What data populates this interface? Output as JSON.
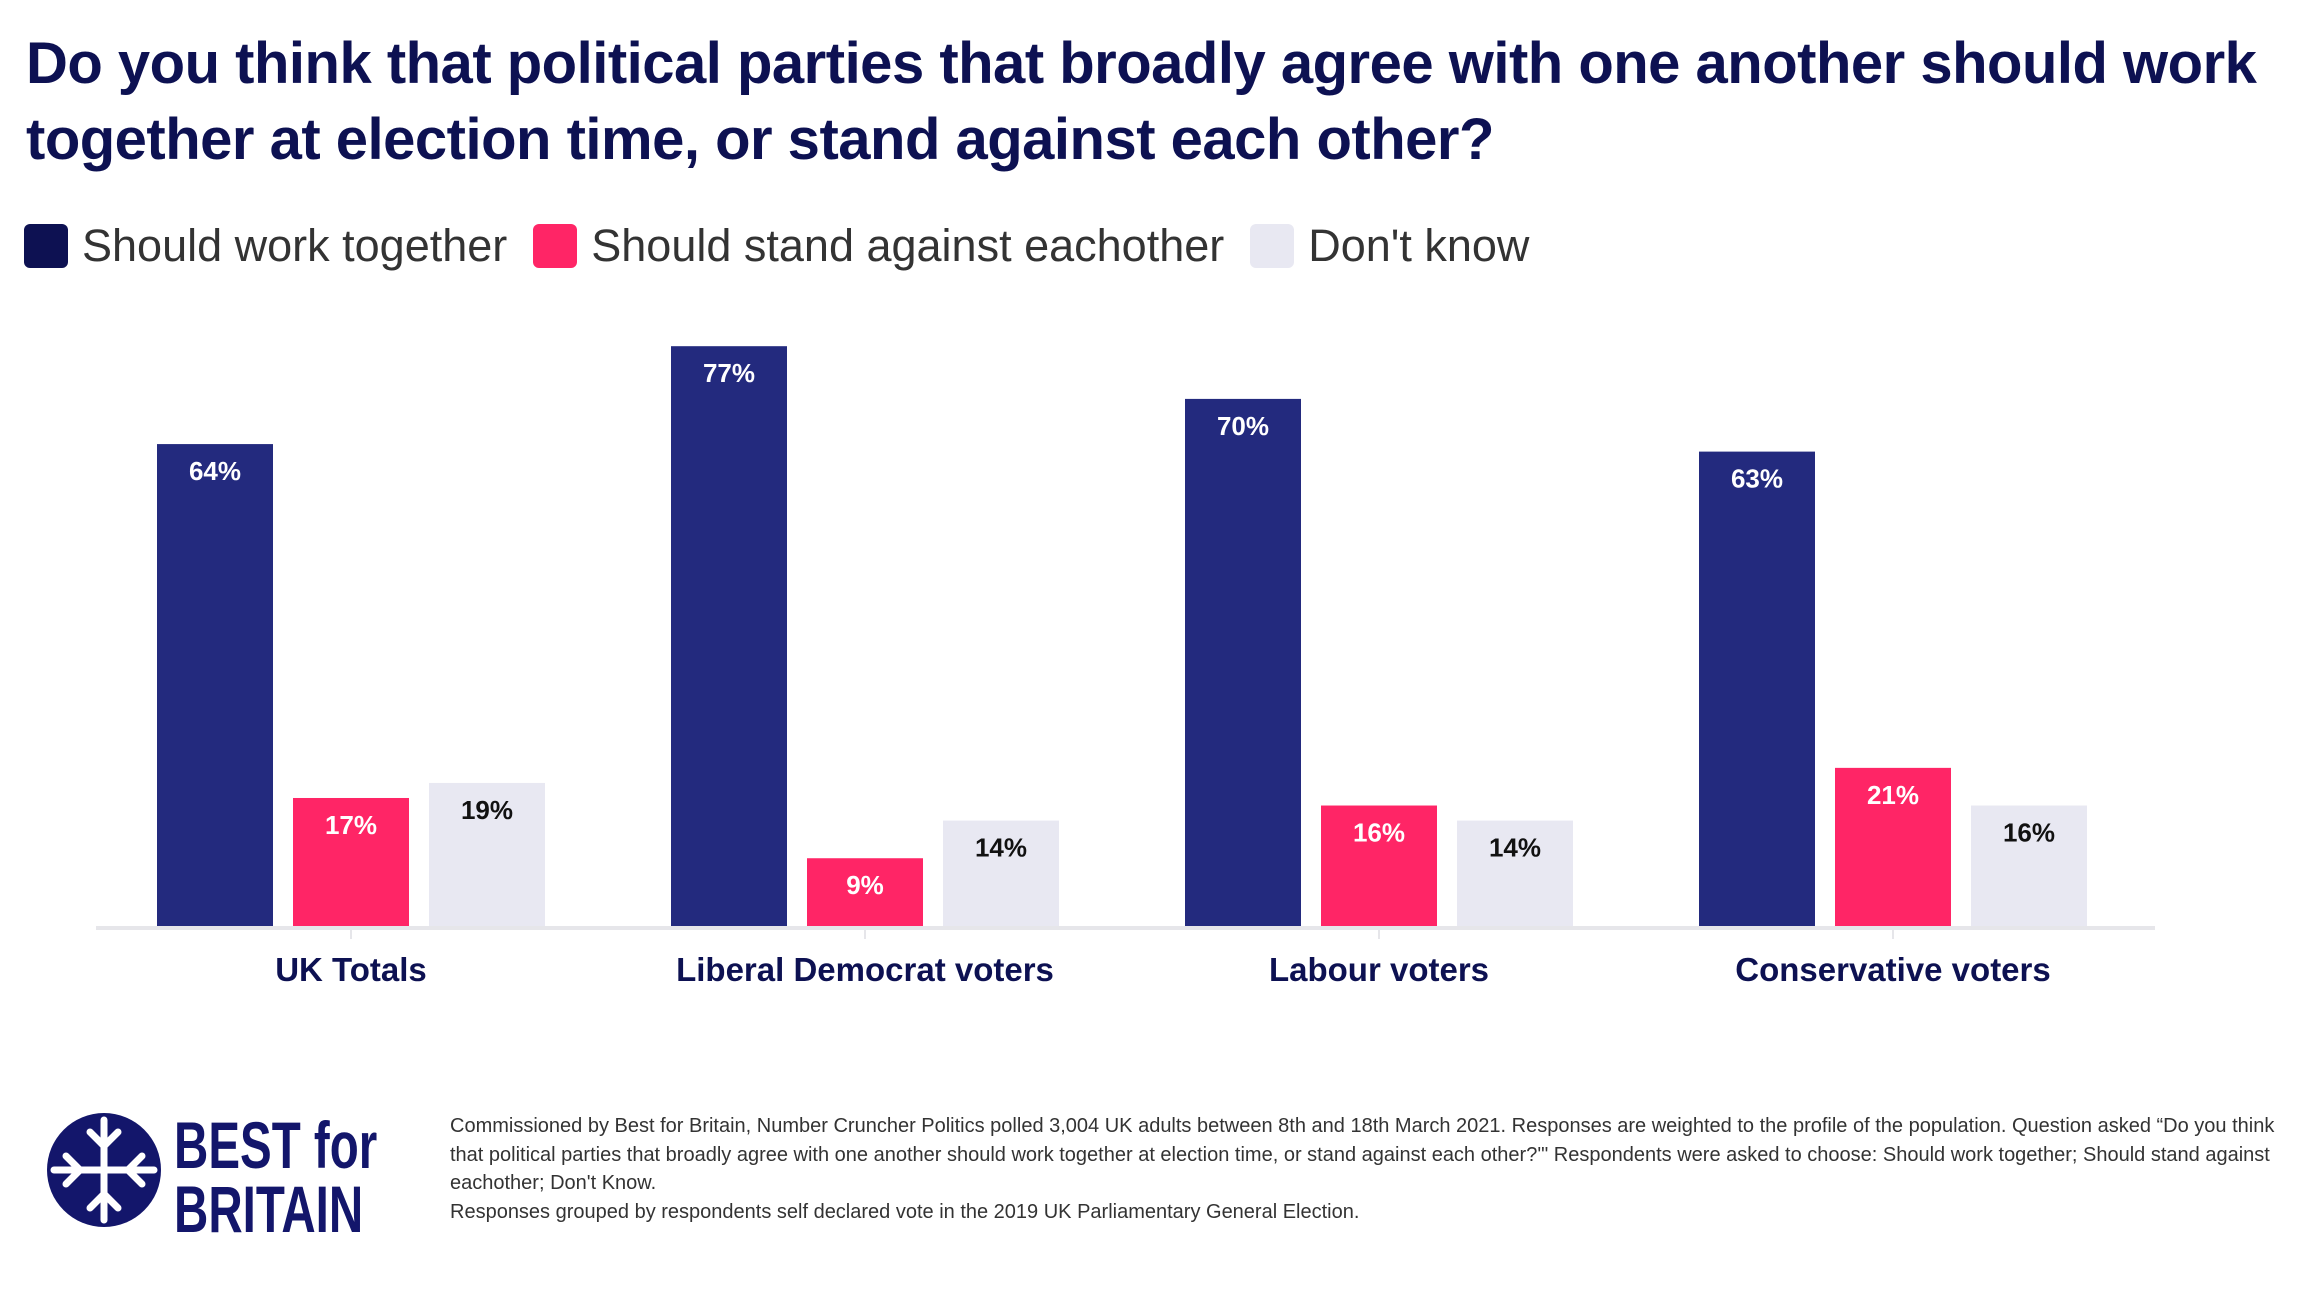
{
  "title": "Do you think that political parties that broadly agree with one another should work together at election time, or stand against each other?",
  "colors": {
    "title": "#0d1152",
    "work_together": "#232a7e",
    "stand_against": "#ff2566",
    "dont_know": "#e8e8f2"
  },
  "chart_data": {
    "type": "bar",
    "title": "Do you think that political parties that broadly agree with one another should work together at election time, or stand against each other?",
    "categories": [
      "UK Totals",
      "Liberal Democrat voters",
      "Labour voters",
      "Conservative voters"
    ],
    "series": [
      {
        "name": "Should work together",
        "color": "#232a7e",
        "values": [
          64,
          77,
          70,
          63
        ],
        "labels": [
          "64%",
          "77%",
          "70%",
          "63%"
        ]
      },
      {
        "name": "Should stand against eachother",
        "color": "#ff2566",
        "values": [
          17,
          9,
          16,
          21
        ],
        "labels": [
          "17%",
          "9%",
          "16%",
          "21%"
        ]
      },
      {
        "name": "Don't know",
        "color": "#e8e8f2",
        "values": [
          19,
          14,
          14,
          16
        ],
        "labels": [
          "19%",
          "14%",
          "14%",
          "16%"
        ]
      }
    ],
    "ylim": [
      0,
      80
    ],
    "grid": false,
    "legend": "top-left",
    "unit": "%"
  },
  "legend": [
    "Should work together",
    "Should stand against eachother",
    "Don't know"
  ],
  "footnote": {
    "line1": "Commissioned by Best for Britain, Number Cruncher Politics polled 3,004 UK adults between 8th and 18th March 2021. Responses are weighted to the profile of the population. Question asked “Do you think that political parties that broadly agree with one another should work together at election time, or stand against each other?'\" Respondents were asked to choose: Should work together; Should stand against eachother; Don't Know.",
    "line2": "Responses grouped by respondents self declared vote in the 2019 UK Parliamentary General Election."
  },
  "logo": {
    "line1": "BEST for",
    "line2": "BRITAIN"
  }
}
